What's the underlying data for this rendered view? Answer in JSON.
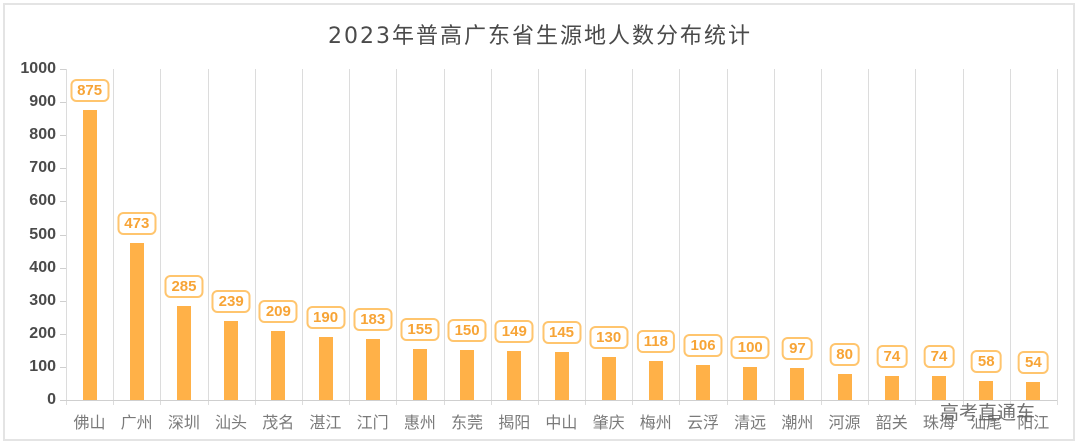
{
  "chart_data": {
    "type": "bar",
    "title": "2023年普高广东省生源地人数分布统计",
    "xlabel": "",
    "ylabel": "",
    "ylim": [
      0,
      1000
    ],
    "yticks": [
      0,
      100,
      200,
      300,
      400,
      500,
      600,
      700,
      800,
      900,
      1000
    ],
    "grid": "vertical category separators",
    "legend": null,
    "categories": [
      "佛山",
      "广州",
      "深圳",
      "汕头",
      "茂名",
      "湛江",
      "江门",
      "惠州",
      "东莞",
      "揭阳",
      "中山",
      "肇庆",
      "梅州",
      "云浮",
      "清远",
      "潮州",
      "河源",
      "韶关",
      "珠海",
      "汕尾",
      "阳江"
    ],
    "values": [
      875,
      473,
      285,
      239,
      209,
      190,
      183,
      155,
      150,
      149,
      145,
      130,
      118,
      106,
      100,
      97,
      80,
      74,
      74,
      58,
      54
    ],
    "bar_color": "#ffb148",
    "label_color": "#f7a436"
  },
  "watermark": "高考直通车"
}
